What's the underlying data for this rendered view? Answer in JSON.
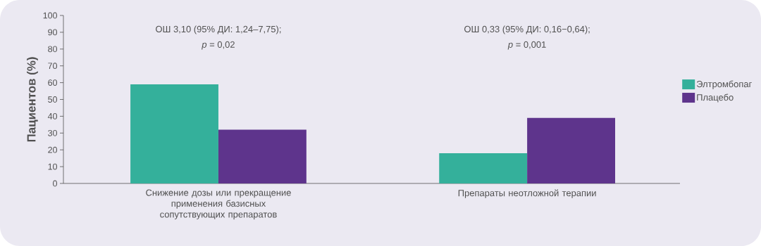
{
  "chart_data": {
    "type": "bar",
    "ylabel": "Пациентов (%)",
    "categories": [
      "Снижение дозы или прекращение применения базисных сопутствующих препаратов",
      "Препараты неотложной терапии"
    ],
    "series": [
      {
        "name": "Элтромбопаг",
        "color": "#34b09b",
        "values": [
          59,
          18
        ]
      },
      {
        "name": "Плацебо",
        "color": "#5e348c",
        "values": [
          32,
          39
        ]
      }
    ],
    "ylim": [
      0,
      100
    ],
    "yticks": [
      0,
      10,
      20,
      30,
      40,
      50,
      60,
      70,
      80,
      90,
      100
    ],
    "grid": false,
    "legend": "right",
    "annotations": [
      "ОШ 3,10 (95% ДИ: 1,24–7,75);",
      "*p* = 0,02",
      "ОШ 0,33 (95% ДИ: 0,16−0,64);",
      "*p* = 0,001"
    ]
  }
}
